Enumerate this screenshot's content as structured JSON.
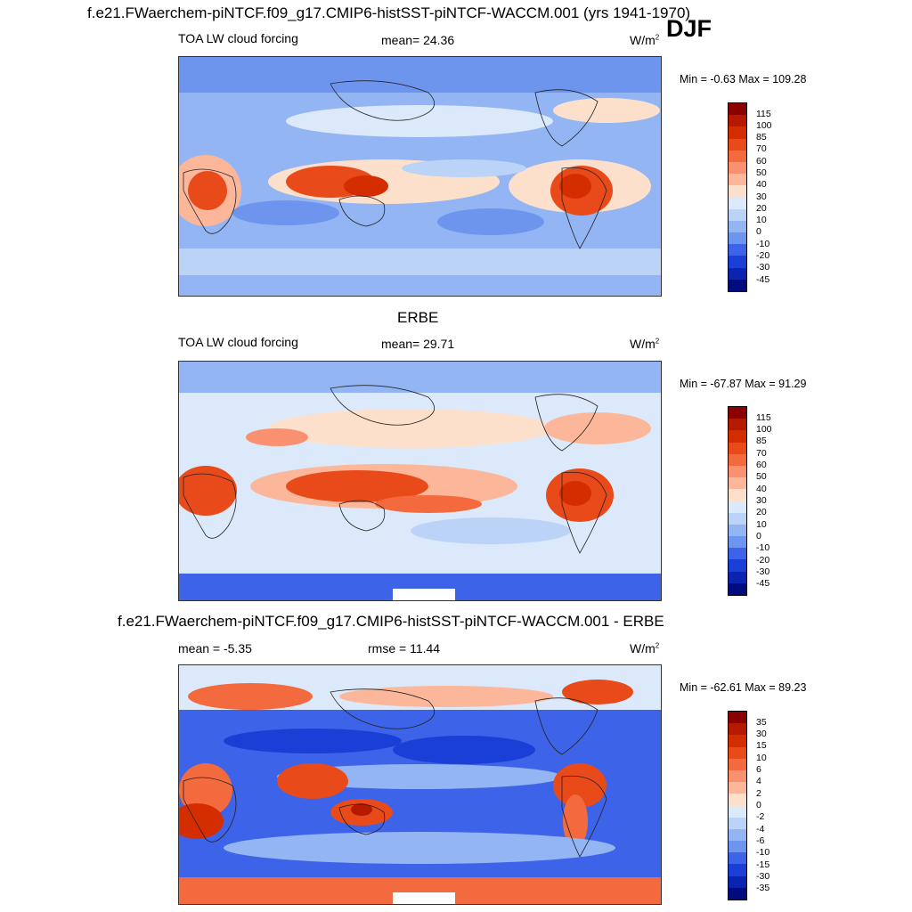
{
  "title_top": "f.e21.FWaerchem-piNTCF.f09_g17.CMIP6-histSST-piNTCF-WACCM.001 (yrs 1941-1970)",
  "season": "DJF",
  "title_mid": "ERBE",
  "title_bottom": "f.e21.FWaerchem-piNTCF.f09_g17.CMIP6-histSST-piNTCF-WACCM.001 - ERBE",
  "panels": [
    {
      "variable": "TOA LW cloud forcing",
      "stat": "mean=  24.36",
      "units": "W/m",
      "units_sup": "2",
      "minmax": "Min =  -0.63 Max = 109.28"
    },
    {
      "variable": "TOA LW cloud forcing",
      "stat": "mean=  29.71",
      "units": "W/m",
      "units_sup": "2",
      "minmax": "Min = -67.87 Max =  91.29"
    },
    {
      "variable": "mean =  -5.35",
      "stat": "rmse =  11.44",
      "units": "W/m",
      "units_sup": "2",
      "minmax": "Min = -62.61 Max =  89.23"
    }
  ],
  "colorbar_levels_abs": [
    "115",
    "100",
    "85",
    "70",
    "60",
    "50",
    "40",
    "30",
    "20",
    "10",
    "0",
    "-10",
    "-20",
    "-30",
    "-45"
  ],
  "colorbar_levels_diff": [
    "35",
    "30",
    "15",
    "10",
    "6",
    "4",
    "2",
    "0",
    "-2",
    "-4",
    "-6",
    "-10",
    "-15",
    "-30",
    "-35"
  ],
  "colorbar_colors": [
    "#8b0000",
    "#b51a00",
    "#d42d00",
    "#e84a1a",
    "#f26a3d",
    "#f99070",
    "#fcb79a",
    "#fde0cc",
    "#dce9fa",
    "#bcd3f8",
    "#93b5f3",
    "#6d95ee",
    "#3c63e8",
    "#1a3fd6",
    "#0a24b0",
    "#000b80"
  ],
  "colors": {
    "land_outline": "#222222",
    "frame": "#333333"
  }
}
